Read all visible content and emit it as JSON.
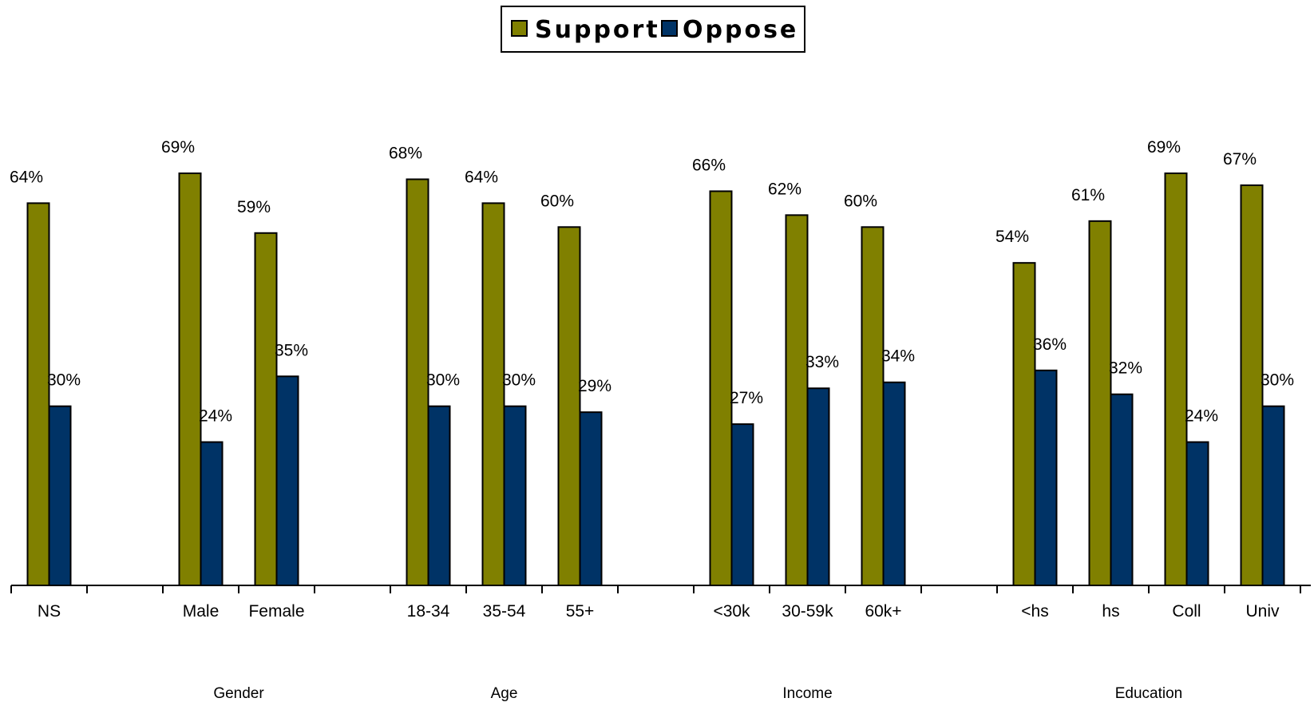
{
  "chart_data": {
    "type": "bar",
    "title": "",
    "xlabel": "",
    "ylabel": "",
    "ylim": [
      0,
      76
    ],
    "grid": false,
    "legend_position": "top-center",
    "colors": {
      "Support": "#808000",
      "Oppose": "#003366"
    },
    "categories": [
      "NS",
      "Male",
      "Female",
      "18-34",
      "35-54",
      "55+",
      "<30k",
      "30-59k",
      "60k+",
      "<hs",
      "hs",
      "Coll",
      "Univ"
    ],
    "series": [
      {
        "name": "Support",
        "values": [
          64,
          69,
          59,
          68,
          64,
          60,
          66,
          62,
          60,
          54,
          61,
          69,
          67
        ],
        "labels": [
          "64%",
          "69%",
          "59%",
          "68%",
          "64%",
          "60%",
          "66%",
          "62%",
          "60%",
          "54%",
          "61%",
          "69%",
          "67%"
        ]
      },
      {
        "name": "Oppose",
        "values": [
          30,
          24,
          35,
          30,
          30,
          29,
          27,
          33,
          34,
          36,
          32,
          24,
          30
        ],
        "labels": [
          "30%",
          "24%",
          "35%",
          "30%",
          "30%",
          "29%",
          "27%",
          "33%",
          "34%",
          "36%",
          "32%",
          "24%",
          "30%"
        ]
      }
    ],
    "groups": [
      {
        "label": "Gender",
        "categories": [
          "Male",
          "Female"
        ]
      },
      {
        "label": "Age",
        "categories": [
          "18-34",
          "35-54",
          "55+"
        ]
      },
      {
        "label": "Income",
        "categories": [
          "<30k",
          "30-59k",
          "60k+"
        ]
      },
      {
        "label": "Education",
        "categories": [
          "<hs",
          "hs",
          "Coll",
          "Univ"
        ]
      }
    ]
  }
}
